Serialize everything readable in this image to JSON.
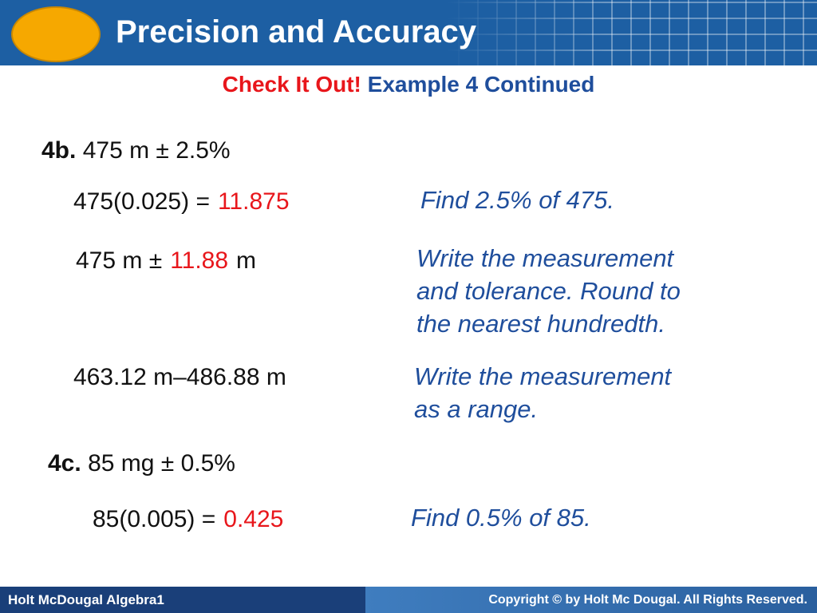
{
  "header": {
    "title": "Precision and Accuracy"
  },
  "subtitle": {
    "lead": "Check It Out!",
    "rest": "Example 4 Continued"
  },
  "problems": [
    {
      "label": "4b.",
      "statement": "475 m ± 2.5%",
      "steps": [
        {
          "work": [
            "475(0.025) =",
            "11.875"
          ],
          "note": [
            "Find 2.5% of 475."
          ]
        },
        {
          "work": [
            "475 m ±",
            "11.88",
            "m"
          ],
          "note": [
            "Write the measurement",
            "and tolerance. Round to",
            "the nearest hundredth."
          ]
        },
        {
          "work": [
            "463.12 m–486.88 m"
          ],
          "note": [
            "Write the measurement",
            "as a range."
          ]
        }
      ]
    },
    {
      "label": "4c.",
      "statement": "85 mg ± 0.5%",
      "steps": [
        {
          "work": [
            "85(0.005) =",
            "0.425"
          ],
          "note": [
            "Find 0.5% of 85."
          ]
        }
      ]
    }
  ],
  "footer": {
    "left": "Holt McDougal Algebra1",
    "right": "Copyright © by Holt Mc Dougal. All Rights Reserved."
  }
}
